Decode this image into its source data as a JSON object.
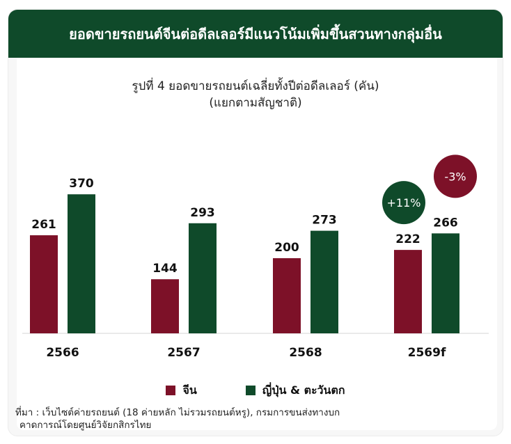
{
  "header": {
    "title": "ยอดขายรถยนต์จีนต่อดีลเลอร์มีแนวโน้มเพิ่มขึ้นสวนทางกลุ่มอื่น"
  },
  "chart_data": {
    "type": "bar",
    "title": "รูปที่ 4 ยอดขายรถยนต์เฉลี่ยทั้งปีต่อดีลเลอร์ (คัน)",
    "subtitle": "(แยกตามสัญชาติ)",
    "categories": [
      "2566",
      "2567",
      "2568",
      "2569f"
    ],
    "series": [
      {
        "name": "จีน",
        "values": [
          261,
          144,
          200,
          222
        ],
        "color": "#7d1128"
      },
      {
        "name": "ญี่ปุ่น & ตะวันตก",
        "values": [
          370,
          293,
          273,
          266
        ],
        "color": "#0f4a2a"
      }
    ],
    "ylim": [
      0,
      400
    ],
    "grid": false,
    "legend_position": "bottom",
    "annotations": [
      {
        "text": "+11%",
        "category": "2569f",
        "series": "จีน",
        "color": "#0f4a2a"
      },
      {
        "text": "-3%",
        "category": "2569f",
        "series": "ญี่ปุ่น & ตะวันตก",
        "color": "#7d1128"
      }
    ]
  },
  "source": {
    "line1": "ที่มา : เว็บไซต์ค่ายรถยนต์ (18 ค่ายหลัก ไม่รวมรถยนต์หรู), กรมการขนส่งทางบก",
    "line2": "คาดการณ์โดยศูนย์วิจัยกสิกรไทย"
  }
}
